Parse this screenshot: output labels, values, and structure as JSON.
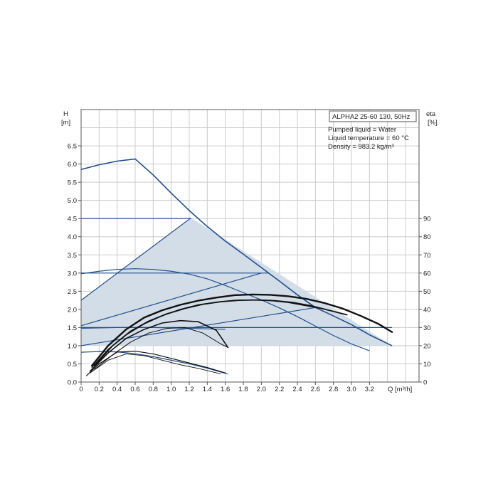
{
  "chart_data": {
    "type": "line",
    "title": "ALPHA2 25-60 130, 50Hz",
    "info_lines": [
      "Pumped liquid = Water",
      "Liquid temperature = 60 °C",
      "Density = 983.2 kg/m³"
    ],
    "xlabel": "Q [m³/h]",
    "ylabel_left": [
      "H",
      "[m]"
    ],
    "ylabel_right": [
      "eta",
      "[%]"
    ],
    "xlim": [
      0,
      3.75
    ],
    "ylim_left": [
      0,
      7.5
    ],
    "ylim_right": [
      0,
      150
    ],
    "grid": true,
    "x_ticks": [
      "0",
      "0.2",
      "0.4",
      "0.6",
      "0.8",
      "1.0",
      "1.2",
      "1.4",
      "1.6",
      "1.8",
      "2.0",
      "2.2",
      "2.4",
      "2.6",
      "2.8",
      "3.0",
      "3.2"
    ],
    "y_left_ticks": [
      "0.0",
      "0.5",
      "1.0",
      "1.5",
      "2.0",
      "2.5",
      "3.0",
      "3.5",
      "4.0",
      "4.5",
      "5.0",
      "5.5",
      "6.0",
      "6.5"
    ],
    "y_right_ticks": [
      "0",
      "10",
      "20",
      "30",
      "40",
      "50",
      "60",
      "70",
      "80",
      "90"
    ],
    "colors": {
      "pump_curve": "#1f4e8c",
      "efficiency": "#111111",
      "area_fill": "#d3dde8",
      "grid": "#cccccc",
      "frame": "#555555"
    },
    "operating_area": [
      [
        0,
        2.25
      ],
      [
        1.22,
        4.52
      ],
      [
        3.45,
        1.0
      ],
      [
        0,
        1.0
      ]
    ],
    "head_series": [
      {
        "points": [
          [
            0,
            5.85
          ],
          [
            0.2,
            5.98
          ],
          [
            0.4,
            6.08
          ],
          [
            0.6,
            6.14
          ],
          [
            0.8,
            5.7
          ],
          [
            1.0,
            5.2
          ],
          [
            1.2,
            4.72
          ],
          [
            1.4,
            4.28
          ],
          [
            1.6,
            3.88
          ],
          [
            1.8,
            3.52
          ],
          [
            2.0,
            3.15
          ],
          [
            2.2,
            2.78
          ],
          [
            2.4,
            2.4
          ],
          [
            2.6,
            2.05
          ],
          [
            2.8,
            1.82
          ],
          [
            3.0,
            1.58
          ],
          [
            3.2,
            1.3
          ],
          [
            3.45,
            1.0
          ]
        ]
      },
      {
        "points": [
          [
            0,
            4.5
          ],
          [
            1.22,
            4.5
          ]
        ]
      },
      {
        "points": [
          [
            0,
            2.25
          ],
          [
            1.22,
            4.52
          ]
        ]
      },
      {
        "points": [
          [
            0,
            2.98
          ],
          [
            0.2,
            3.05
          ],
          [
            0.4,
            3.1
          ],
          [
            0.6,
            3.12
          ],
          [
            0.8,
            3.1
          ],
          [
            1.0,
            3.05
          ],
          [
            1.2,
            2.97
          ],
          [
            1.4,
            2.84
          ],
          [
            1.6,
            2.66
          ],
          [
            1.8,
            2.46
          ],
          [
            2.0,
            2.26
          ],
          [
            2.2,
            2.04
          ],
          [
            2.4,
            1.8
          ],
          [
            2.6,
            1.54
          ],
          [
            2.8,
            1.28
          ],
          [
            3.0,
            1.05
          ],
          [
            3.2,
            0.86
          ]
        ]
      },
      {
        "points": [
          [
            0,
            3.0
          ],
          [
            2.08,
            3.0
          ]
        ]
      },
      {
        "points": [
          [
            0,
            1.55
          ],
          [
            2.0,
            3.0
          ]
        ]
      },
      {
        "points": [
          [
            0,
            1.5
          ],
          [
            3.45,
            1.5
          ]
        ]
      },
      {
        "points": [
          [
            0,
            1.0
          ],
          [
            2.6,
            2.05
          ]
        ]
      },
      {
        "points": [
          [
            0,
            1.48
          ],
          [
            0.4,
            1.5
          ],
          [
            0.8,
            1.5
          ],
          [
            1.2,
            1.48
          ],
          [
            1.6,
            1.45
          ]
        ]
      },
      {
        "points": [
          [
            0,
            0.82
          ],
          [
            0.2,
            0.84
          ],
          [
            0.4,
            0.83
          ],
          [
            0.6,
            0.78
          ],
          [
            0.8,
            0.7
          ],
          [
            1.0,
            0.6
          ],
          [
            1.2,
            0.5
          ],
          [
            1.4,
            0.38
          ],
          [
            1.63,
            0.22
          ]
        ]
      }
    ],
    "efficiency_series": [
      {
        "points": [
          [
            0.12,
            9
          ],
          [
            0.3,
            20
          ],
          [
            0.5,
            29
          ],
          [
            0.7,
            35.5
          ],
          [
            0.9,
            39.5
          ],
          [
            1.1,
            42.5
          ],
          [
            1.3,
            44.8
          ],
          [
            1.5,
            46.5
          ],
          [
            1.7,
            47.8
          ],
          [
            1.9,
            48.2
          ],
          [
            2.1,
            48
          ],
          [
            2.3,
            47.2
          ],
          [
            2.5,
            45.8
          ],
          [
            2.7,
            43.5
          ],
          [
            2.9,
            40.5
          ],
          [
            3.1,
            36.5
          ],
          [
            3.3,
            32
          ],
          [
            3.45,
            27.5
          ]
        ]
      },
      {
        "points": [
          [
            0.15,
            9
          ],
          [
            0.35,
            20
          ],
          [
            0.55,
            28
          ],
          [
            0.75,
            33.5
          ],
          [
            0.95,
            37.5
          ],
          [
            1.15,
            40.5
          ],
          [
            1.35,
            42.8
          ],
          [
            1.55,
            44.2
          ],
          [
            1.75,
            45
          ],
          [
            1.95,
            45.2
          ],
          [
            2.15,
            44.8
          ],
          [
            2.35,
            43.8
          ],
          [
            2.55,
            42
          ],
          [
            2.75,
            39.5
          ],
          [
            2.95,
            37
          ]
        ]
      },
      {
        "points": [
          [
            0.12,
            8
          ],
          [
            0.3,
            18
          ],
          [
            0.5,
            26
          ],
          [
            0.7,
            32
          ],
          [
            0.9,
            36.5
          ],
          [
            1.1,
            40
          ],
          [
            1.3,
            42.5
          ],
          [
            1.5,
            44
          ],
          [
            1.7,
            45
          ],
          [
            1.9,
            45.2
          ],
          [
            2.1,
            44.8
          ],
          [
            2.3,
            43.8
          ],
          [
            2.5,
            42
          ],
          [
            2.7,
            40.2
          ]
        ]
      },
      {
        "points": [
          [
            0.1,
            6
          ],
          [
            0.3,
            16
          ],
          [
            0.5,
            24
          ],
          [
            0.7,
            29
          ],
          [
            0.9,
            32.5
          ],
          [
            1.1,
            33.8
          ],
          [
            1.3,
            33.2
          ],
          [
            1.5,
            28.5
          ],
          [
            1.63,
            19
          ]
        ]
      },
      {
        "points": [
          [
            0.15,
            7
          ],
          [
            0.35,
            15
          ],
          [
            0.55,
            22
          ],
          [
            0.75,
            27
          ],
          [
            0.95,
            29.5
          ],
          [
            1.15,
            30
          ],
          [
            1.35,
            27
          ],
          [
            1.55,
            21
          ],
          [
            1.63,
            19
          ]
        ]
      },
      {
        "points": [
          [
            0.06,
            3.5
          ],
          [
            0.2,
            10
          ],
          [
            0.4,
            16.5
          ],
          [
            0.6,
            17
          ],
          [
            0.8,
            15.5
          ],
          [
            1.0,
            13
          ],
          [
            1.2,
            10.5
          ],
          [
            1.4,
            8
          ],
          [
            1.6,
            5
          ]
        ]
      },
      {
        "points": [
          [
            0.1,
            5
          ],
          [
            0.3,
            12
          ],
          [
            0.5,
            15.5
          ],
          [
            0.7,
            14.5
          ],
          [
            0.9,
            12
          ],
          [
            1.1,
            9.5
          ],
          [
            1.3,
            7.5
          ],
          [
            1.55,
            4.5
          ]
        ]
      }
    ]
  }
}
